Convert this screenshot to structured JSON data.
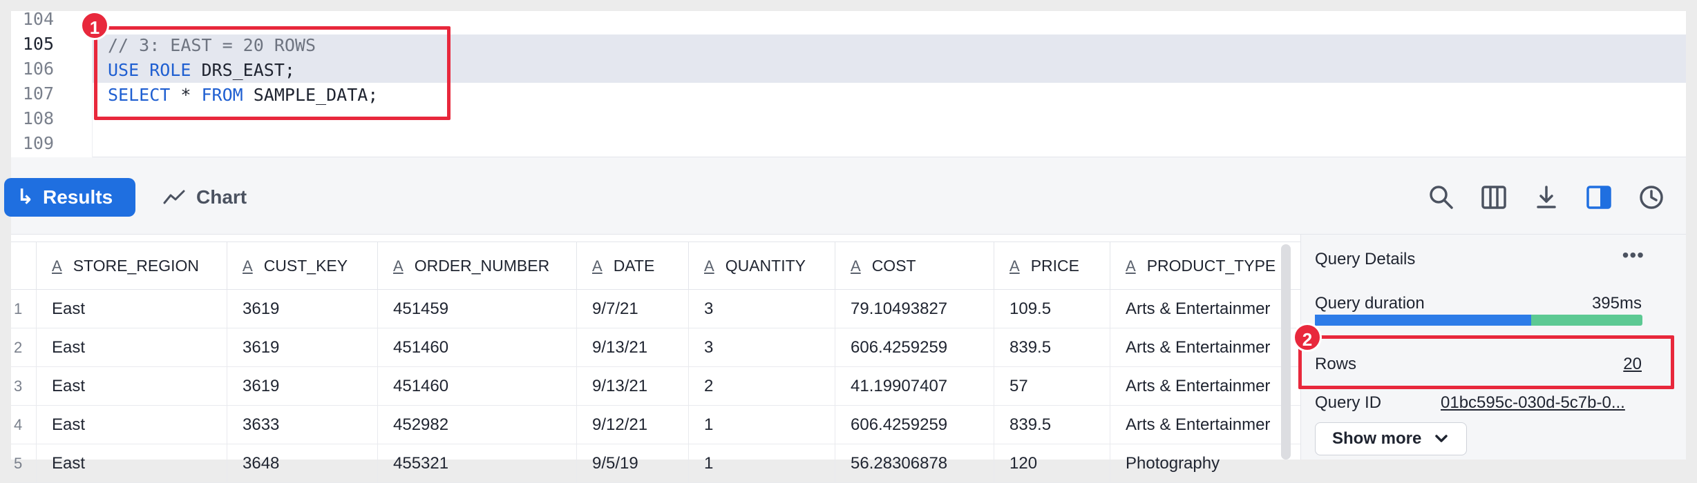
{
  "editor": {
    "line_numbers": [
      "104",
      "105",
      "106",
      "107",
      "108",
      "109"
    ],
    "lines": {
      "l105": "// 3: EAST = 20 ROWS",
      "l106_kw": "USE ROLE",
      "l106_rest": " DRS_EAST;",
      "l107_kw1": "SELECT",
      "l107_mid": " * ",
      "l107_kw2": "FROM",
      "l107_rest": " SAMPLE_DATA;"
    }
  },
  "annotations": {
    "badge1": "1",
    "badge2": "2"
  },
  "toolbar": {
    "results_label": "Results",
    "chart_label": "Chart",
    "icons": [
      "search-icon",
      "columns-icon",
      "download-icon",
      "panel-toggle-icon",
      "history-icon"
    ]
  },
  "grid": {
    "columns": [
      "STORE_REGION",
      "CUST_KEY",
      "ORDER_NUMBER",
      "DATE",
      "QUANTITY",
      "COST",
      "PRICE",
      "PRODUCT_TYPE"
    ],
    "type_glyph": "A",
    "rows": [
      {
        "n": "1",
        "cells": [
          "East",
          "3619",
          "451459",
          "9/7/21",
          "3",
          "79.10493827",
          "109.5",
          "Arts & Entertainmer"
        ]
      },
      {
        "n": "2",
        "cells": [
          "East",
          "3619",
          "451460",
          "9/13/21",
          "3",
          "606.4259259",
          "839.5",
          "Arts & Entertainmer"
        ]
      },
      {
        "n": "3",
        "cells": [
          "East",
          "3619",
          "451460",
          "9/13/21",
          "2",
          "41.19907407",
          "57",
          "Arts & Entertainmer"
        ]
      },
      {
        "n": "4",
        "cells": [
          "East",
          "3633",
          "452982",
          "9/12/21",
          "1",
          "606.4259259",
          "839.5",
          "Arts & Entertainmer"
        ]
      },
      {
        "n": "5",
        "cells": [
          "East",
          "3648",
          "455321",
          "9/5/19",
          "1",
          "56.28306878",
          "120",
          "Photography"
        ]
      }
    ]
  },
  "panel": {
    "title": "Query Details",
    "more": "•••",
    "duration_label": "Query duration",
    "duration_value": "395ms",
    "duration_split": 0.66,
    "rows_label": "Rows",
    "rows_value": "20",
    "query_id_label": "Query ID",
    "query_id_value": "01bc595c-030d-5c7b-0...",
    "show_more": "Show more"
  },
  "colors": {
    "accent": "#1f6fe0",
    "highlight": "#e8283c",
    "bar_primary": "#2d7ce8",
    "bar_secondary": "#5cc993"
  }
}
